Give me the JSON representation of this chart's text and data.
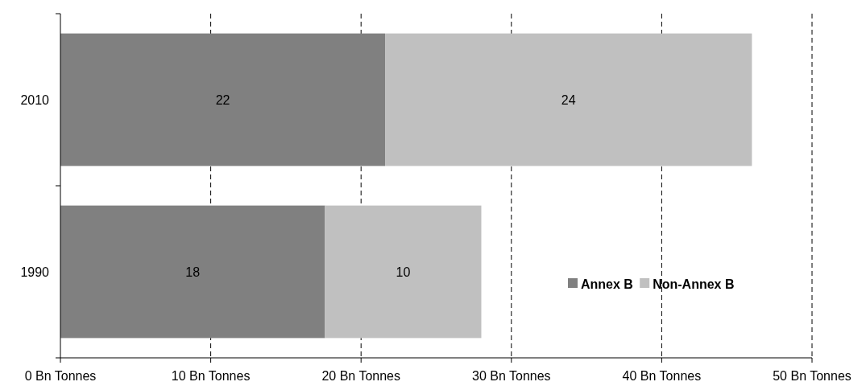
{
  "chart_data": {
    "type": "bar",
    "orientation": "horizontal",
    "stacked": true,
    "categories": [
      "2010",
      "1990"
    ],
    "series": [
      {
        "name": "Annex B",
        "color": "#808080",
        "values": [
          21.6,
          17.6
        ],
        "value_labels": [
          "22",
          "18"
        ]
      },
      {
        "name": "Non-Annex B",
        "color": "#c0c0c0",
        "values": [
          24.4,
          10.4
        ],
        "value_labels": [
          "24",
          "10"
        ]
      }
    ],
    "xlim": [
      0,
      50
    ],
    "xticks": [
      {
        "value": 0,
        "label": "0 Bn Tonnes"
      },
      {
        "value": 10,
        "label": "10 Bn Tonnes"
      },
      {
        "value": 20,
        "label": "20 Bn Tonnes"
      },
      {
        "value": 30,
        "label": "30 Bn Tonnes"
      },
      {
        "value": 40,
        "label": "40 Bn Tonnes"
      },
      {
        "value": 50,
        "label": "50 Bn Tonnes"
      }
    ],
    "grid": "x",
    "legend": "bottom right"
  }
}
